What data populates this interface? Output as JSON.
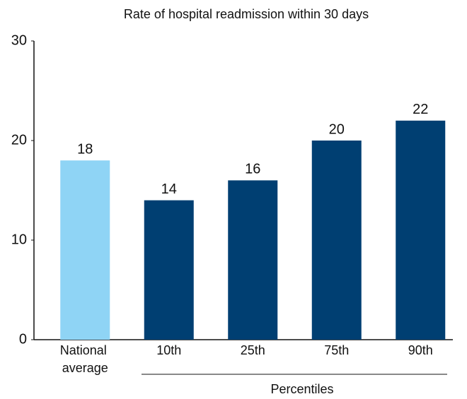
{
  "chart_data": {
    "type": "bar",
    "title": "Rate of hospital readmission within 30 days",
    "categories": [
      "National average",
      "10th",
      "25th",
      "75th",
      "90th"
    ],
    "values": [
      18,
      14,
      16,
      20,
      22
    ],
    "colors": [
      "#8fd4f5",
      "#003f72",
      "#003f72",
      "#003f72",
      "#003f72"
    ],
    "ylim": [
      0,
      30
    ],
    "yticks": [
      0,
      10,
      20,
      30
    ],
    "grid": false,
    "group_label": "Percentiles"
  }
}
